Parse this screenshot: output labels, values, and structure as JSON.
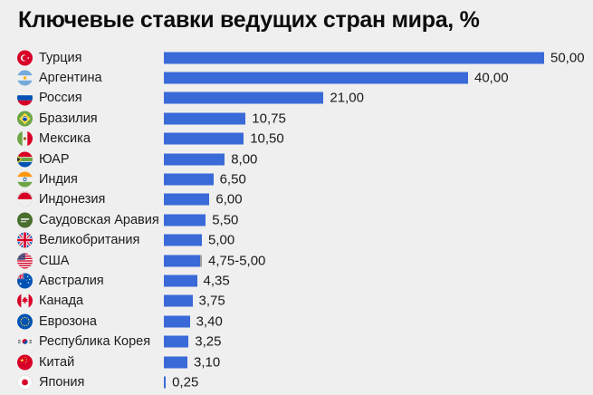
{
  "title": "Ключевые ставки ведущих стран мира, %",
  "chart_data": {
    "type": "bar",
    "orientation": "horizontal",
    "title": "Ключевые ставки ведущих стран мира, %",
    "xlim": [
      0,
      50
    ],
    "grid": false,
    "legend": "none",
    "background_color": "#efefef",
    "bar_color": "#3a6ad8",
    "range_tip_color": "#a0a0a0",
    "categories": [
      "Турция",
      "Аргентина",
      "Россия",
      "Бразилия",
      "Мексика",
      "ЮАР",
      "Индия",
      "Индонезия",
      "Саудовская Аравия",
      "Великобритания",
      "США",
      "Австралия",
      "Канада",
      "Еврозона",
      "Республика Корея",
      "Китай",
      "Япония"
    ],
    "values": [
      50.0,
      40.0,
      21.0,
      10.75,
      10.5,
      8.0,
      6.5,
      6.0,
      5.5,
      5.0,
      4.75,
      4.35,
      3.75,
      3.4,
      3.25,
      3.1,
      0.25
    ],
    "rows": [
      {
        "category": "Турция",
        "flag": "tr",
        "value": 50.0,
        "label": "50,00"
      },
      {
        "category": "Аргентина",
        "flag": "ar",
        "value": 40.0,
        "label": "40,00"
      },
      {
        "category": "Россия",
        "flag": "ru",
        "value": 21.0,
        "label": "21,00"
      },
      {
        "category": "Бразилия",
        "flag": "br",
        "value": 10.75,
        "label": "10,75"
      },
      {
        "category": "Мексика",
        "flag": "mx",
        "value": 10.5,
        "label": "10,50"
      },
      {
        "category": "ЮАР",
        "flag": "za",
        "value": 8.0,
        "label": "8,00"
      },
      {
        "category": "Индия",
        "flag": "in",
        "value": 6.5,
        "label": "6,50"
      },
      {
        "category": "Индонезия",
        "flag": "id",
        "value": 6.0,
        "label": "6,00"
      },
      {
        "category": "Саудовская Аравия",
        "flag": "sa",
        "value": 5.5,
        "label": "5,50"
      },
      {
        "category": "Великобритания",
        "flag": "gb",
        "value": 5.0,
        "label": "5,00"
      },
      {
        "category": "США",
        "flag": "us",
        "value": 4.75,
        "value_high": 5.0,
        "label": "4,75-5,00"
      },
      {
        "category": "Австралия",
        "flag": "au",
        "value": 4.35,
        "label": "4,35"
      },
      {
        "category": "Канада",
        "flag": "ca",
        "value": 3.75,
        "label": "3,75"
      },
      {
        "category": "Еврозона",
        "flag": "eu",
        "value": 3.4,
        "label": "3,40"
      },
      {
        "category": "Республика Корея",
        "flag": "kr",
        "value": 3.25,
        "label": "3,25"
      },
      {
        "category": "Китай",
        "flag": "cn",
        "value": 3.1,
        "label": "3,10"
      },
      {
        "category": "Япония",
        "flag": "jp",
        "value": 0.25,
        "label": "0,25"
      }
    ]
  }
}
